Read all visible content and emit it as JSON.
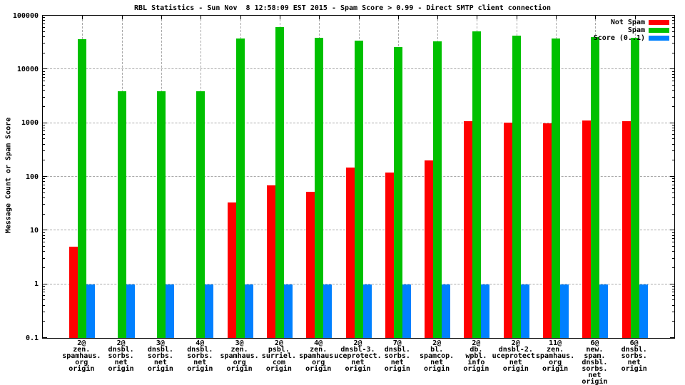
{
  "chart_data": {
    "type": "bar",
    "title": "RBL Statistics - Sun Nov  8 12:58:09 EST 2015 - Spam Score > 0.99 - Direct SMTP client connection",
    "ylabel": "Message Count or Spam Score",
    "xlabel": "",
    "y_scale": "log",
    "ylim": [
      0.1,
      100000
    ],
    "grid": true,
    "legend_position": "top-right",
    "y_ticks": [
      {
        "label": "100000",
        "value": 100000
      },
      {
        "label": "10000",
        "value": 10000
      },
      {
        "label": "1000",
        "value": 1000
      },
      {
        "label": "100",
        "value": 100
      },
      {
        "label": "10",
        "value": 10
      },
      {
        "label": "1",
        "value": 1
      },
      {
        "label": "0.1",
        "value": 0.1
      }
    ],
    "legend": [
      {
        "name": "Not Spam",
        "color": "#ff0000"
      },
      {
        "name": "Spam",
        "color": "#00c000"
      },
      {
        "name": "Score (0..1)",
        "color": "#0080ff"
      }
    ],
    "categories": [
      [
        "2@",
        "zen.",
        "spamhaus.",
        "org",
        "origin"
      ],
      [
        "2@",
        "dnsbl.",
        "sorbs.",
        "net",
        "origin"
      ],
      [
        "3@",
        "dnsbl.",
        "sorbs.",
        "net",
        "origin"
      ],
      [
        "4@",
        "dnsbl.",
        "sorbs.",
        "net",
        "origin"
      ],
      [
        "3@",
        "zen.",
        "spamhaus.",
        "org",
        "origin"
      ],
      [
        "2@",
        "psbl.",
        "surriel.",
        "com",
        "origin"
      ],
      [
        "4@",
        "zen.",
        "spamhaus.",
        "org",
        "origin"
      ],
      [
        "2@",
        "dnsbl-3.",
        "uceprotect.",
        "net",
        "origin"
      ],
      [
        "7@",
        "dnsbl.",
        "sorbs.",
        "net",
        "origin"
      ],
      [
        "2@",
        "bl.",
        "spamcop.",
        "net",
        "origin"
      ],
      [
        "2@",
        "db.",
        "wpbl.",
        "info",
        "origin"
      ],
      [
        "2@",
        "dnsbl-2.",
        "uceprotect.",
        "net",
        "origin"
      ],
      [
        "11@",
        "zen.",
        "spamhaus.",
        "org",
        "origin"
      ],
      [
        "6@",
        "new.",
        "spam.",
        "dnsbl.",
        "sorbs.",
        "net",
        "origin"
      ],
      [
        "6@",
        "dnsbl.",
        "sorbs.",
        "net",
        "origin"
      ]
    ],
    "series": [
      {
        "name": "Not Spam",
        "color": "#ff0000",
        "values": [
          5,
          null,
          null,
          null,
          33,
          70,
          53,
          150,
          120,
          200,
          1100,
          1020,
          990,
          1120,
          1090
        ]
      },
      {
        "name": "Spam",
        "color": "#00c000",
        "values": [
          36000,
          3900,
          3900,
          3900,
          38000,
          62000,
          39000,
          34000,
          26000,
          33000,
          51000,
          43000,
          38000,
          40000,
          39000
        ]
      },
      {
        "name": "Score (0..1)",
        "color": "#0080ff",
        "values": [
          1,
          1,
          1,
          1,
          1,
          1,
          1,
          1,
          1,
          1,
          1,
          1,
          1,
          1,
          1
        ]
      }
    ],
    "colors": {
      "grid": "#a8a8a8",
      "axis": "#000000",
      "background": "#ffffff"
    }
  }
}
